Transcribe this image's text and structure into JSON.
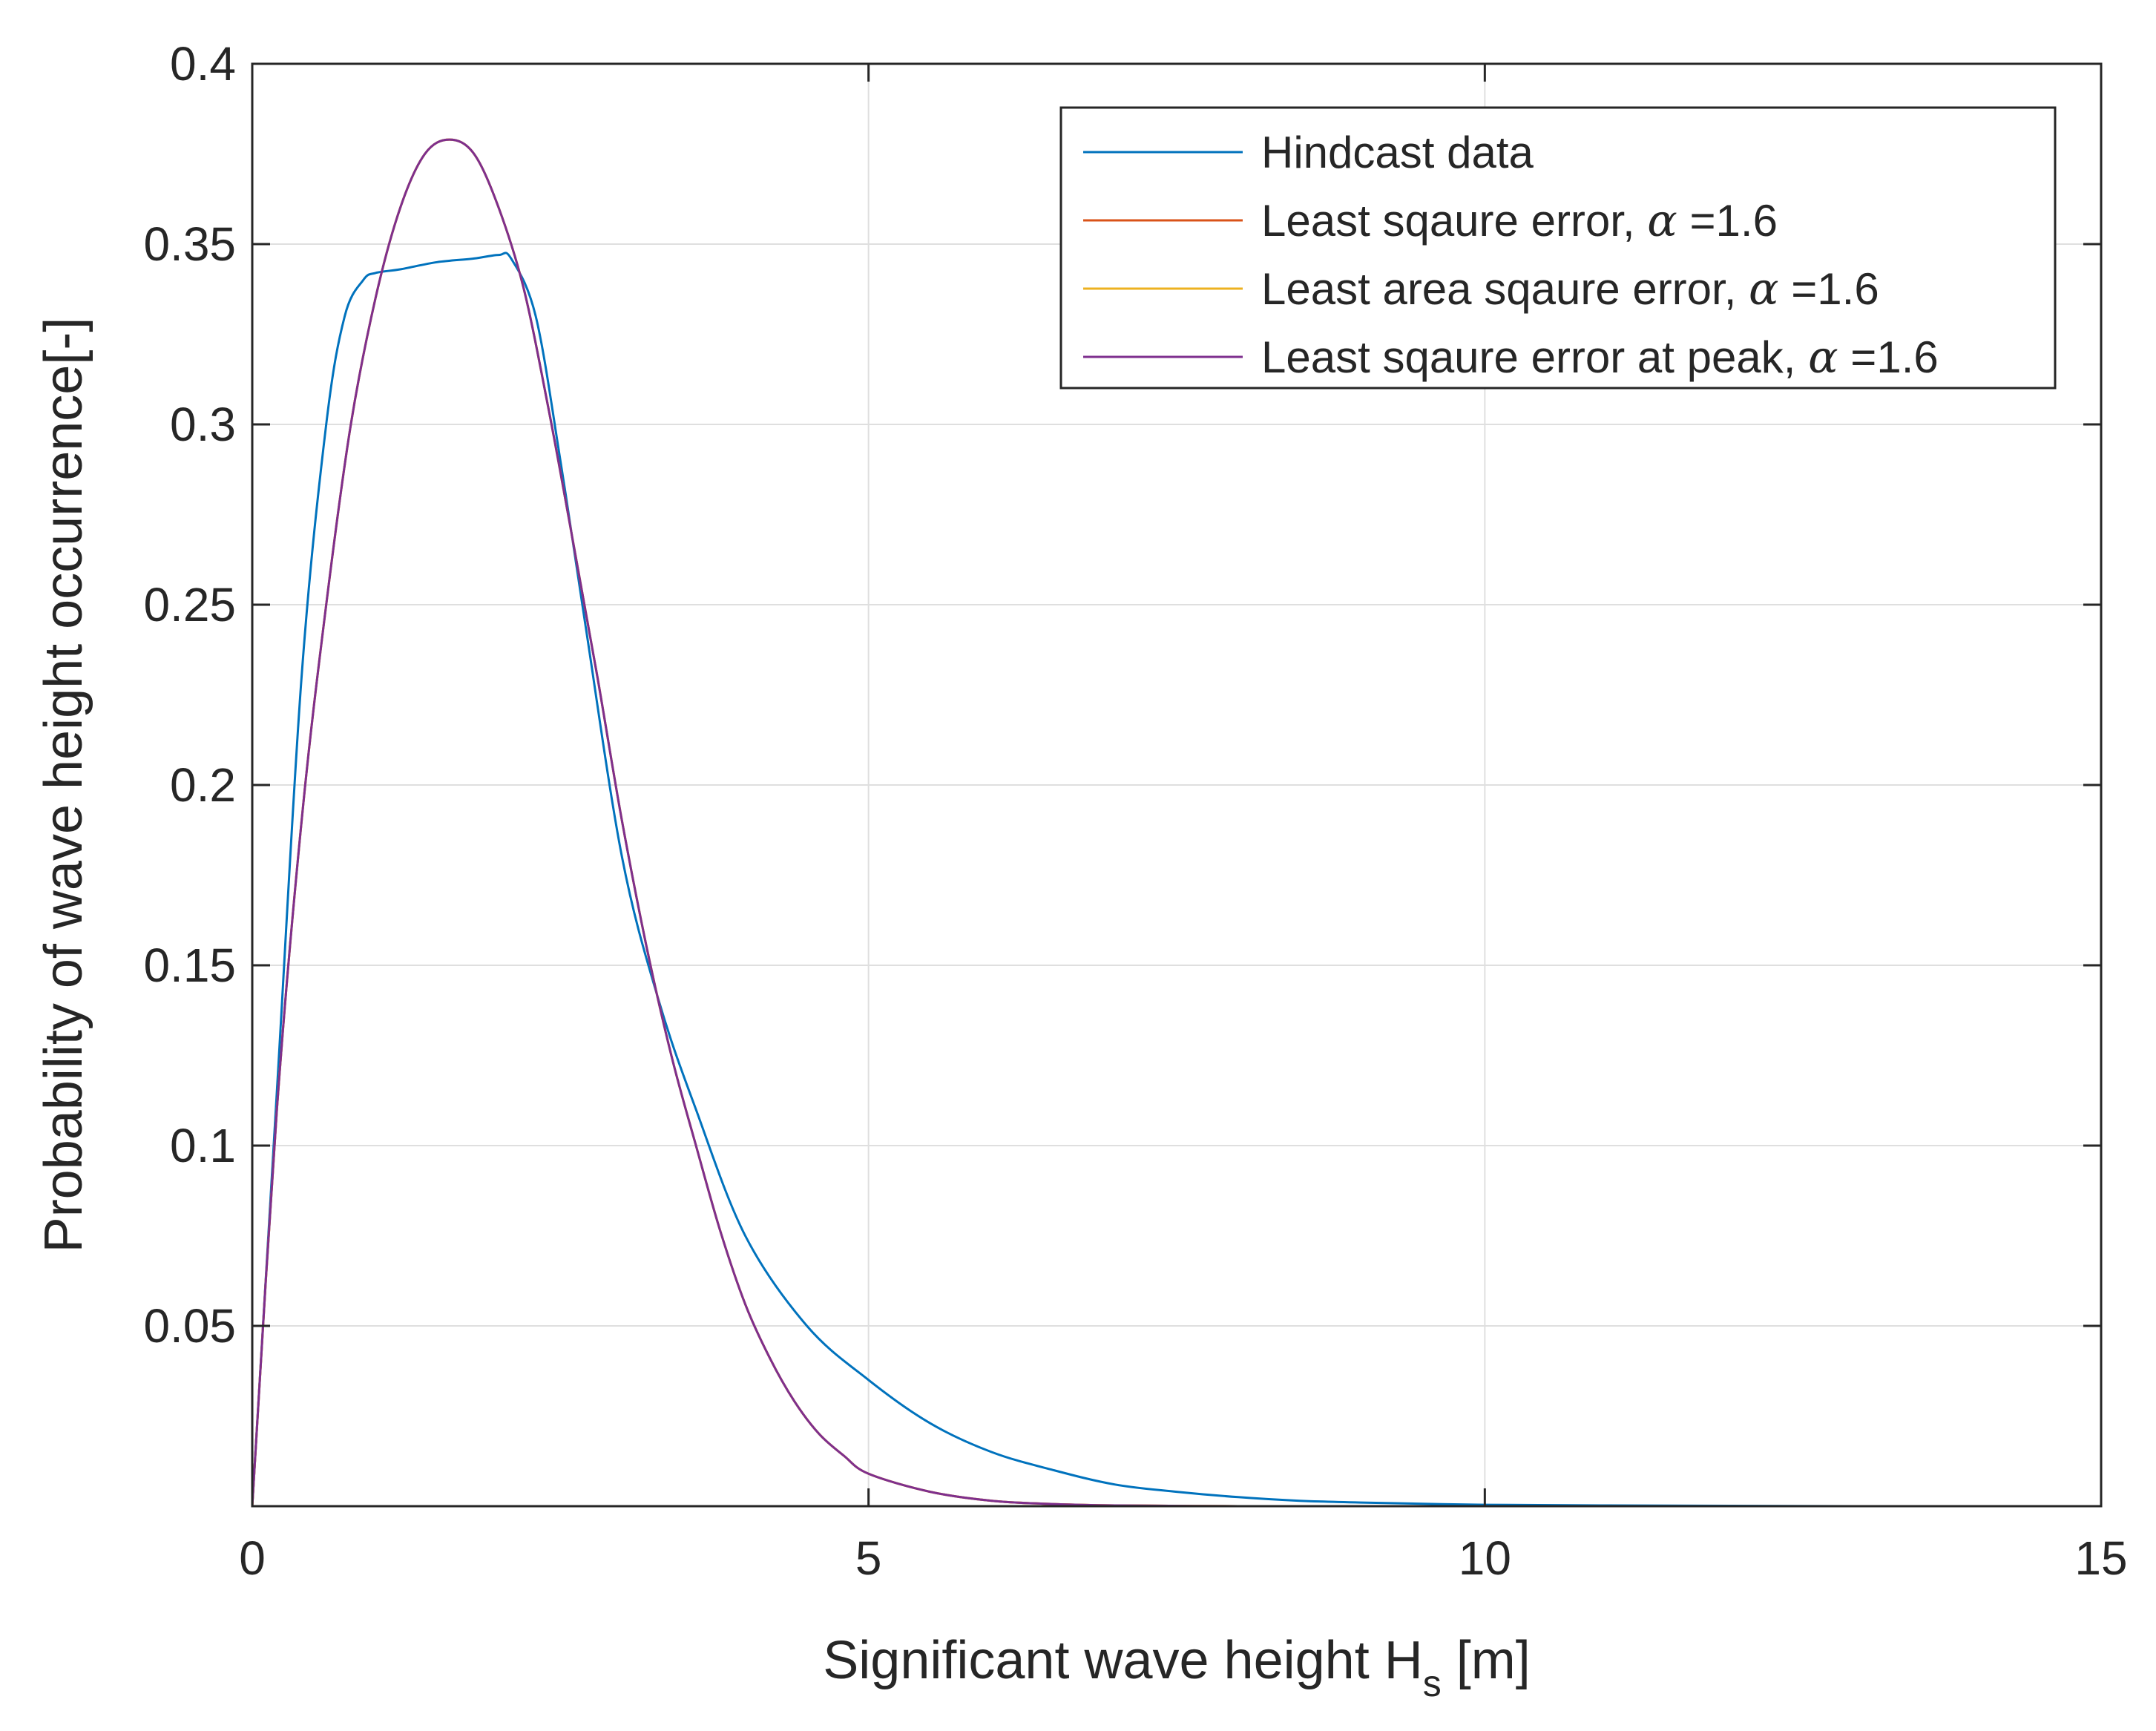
{
  "chart_data": {
    "type": "line",
    "title": "",
    "xlabel_main": "Significant wave height H",
    "xlabel_sub": "s",
    "xlabel_unit": " [m]",
    "ylabel": "Probability of wave height occurrence[-]",
    "xlim": [
      0,
      15
    ],
    "ylim": [
      0,
      0.4
    ],
    "x_ticks": [
      0,
      5,
      10,
      15
    ],
    "x_tick_labels": [
      "0",
      "5",
      "10",
      "15"
    ],
    "y_ticks": [
      0.05,
      0.1,
      0.15,
      0.2,
      0.25,
      0.3,
      0.35,
      0.4
    ],
    "y_tick_labels": [
      "0.05",
      "0.1",
      "0.15",
      "0.2",
      "0.25",
      "0.3",
      "0.35",
      "0.4"
    ],
    "grid": true,
    "legend_position": "top-right",
    "series": [
      {
        "name": "Hindcast data",
        "legend_text": "Hindcast data",
        "legend_symbol": "",
        "legend_suffix": "",
        "color": "#0072BD",
        "x": [
          0,
          0.2,
          0.4,
          0.6,
          0.75,
          0.9,
          1.0,
          1.2,
          1.5,
          1.8,
          2.0,
          2.1,
          2.3,
          2.5,
          2.7,
          3.0,
          3.3,
          3.6,
          4.0,
          4.5,
          5.0,
          5.5,
          6.0,
          6.5,
          7.0,
          7.5,
          8.0,
          8.5,
          9.0,
          10.0,
          11.0,
          12.0,
          13.0,
          14.0,
          15.0
        ],
        "y": [
          0,
          0.115,
          0.23,
          0.3,
          0.33,
          0.34,
          0.342,
          0.343,
          0.345,
          0.346,
          0.347,
          0.346,
          0.33,
          0.29,
          0.245,
          0.18,
          0.14,
          0.11,
          0.075,
          0.05,
          0.035,
          0.023,
          0.015,
          0.01,
          0.006,
          0.004,
          0.0025,
          0.0015,
          0.001,
          0.0004,
          0.0002,
          0.0001,
          0,
          0,
          0
        ]
      },
      {
        "name": "Least sqaure error",
        "legend_text": "Least sqaure error, ",
        "legend_symbol": "α",
        "legend_suffix": " =1.6",
        "color": "#D95319",
        "x": [
          0,
          0.2,
          0.4,
          0.6,
          0.8,
          1.0,
          1.2,
          1.4,
          1.6,
          1.8,
          2.0,
          2.2,
          2.4,
          2.6,
          2.8,
          3.0,
          3.2,
          3.4,
          3.6,
          3.8,
          4.0,
          4.2,
          4.4,
          4.6,
          4.8,
          5.0,
          5.5,
          6.0,
          6.5,
          7.0,
          8.0,
          9.0,
          10.0,
          12.0,
          15.0
        ],
        "y": [
          0,
          0.11,
          0.19,
          0.25,
          0.3,
          0.335,
          0.36,
          0.375,
          0.379,
          0.375,
          0.36,
          0.338,
          0.305,
          0.268,
          0.23,
          0.19,
          0.155,
          0.125,
          0.1,
          0.076,
          0.056,
          0.041,
          0.029,
          0.02,
          0.014,
          0.009,
          0.004,
          0.0015,
          0.0006,
          0.0002,
          0,
          0,
          0,
          0,
          0
        ]
      },
      {
        "name": "Least area sqaure error",
        "legend_text": "Least area sqaure error, ",
        "legend_symbol": "α",
        "legend_suffix": " =1.6",
        "color": "#EDB120",
        "x": [
          0,
          0.2,
          0.4,
          0.6,
          0.8,
          1.0,
          1.2,
          1.4,
          1.6,
          1.8,
          2.0,
          2.2,
          2.4,
          2.6,
          2.8,
          3.0,
          3.2,
          3.4,
          3.6,
          3.8,
          4.0,
          4.2,
          4.4,
          4.6,
          4.8,
          5.0,
          5.5,
          6.0,
          6.5,
          7.0,
          8.0,
          9.0,
          10.0,
          12.0,
          15.0
        ],
        "y": [
          0,
          0.11,
          0.19,
          0.25,
          0.3,
          0.335,
          0.36,
          0.375,
          0.379,
          0.375,
          0.36,
          0.338,
          0.305,
          0.268,
          0.23,
          0.19,
          0.155,
          0.125,
          0.1,
          0.076,
          0.056,
          0.041,
          0.029,
          0.02,
          0.014,
          0.009,
          0.004,
          0.0015,
          0.0006,
          0.0002,
          0,
          0,
          0,
          0,
          0
        ]
      },
      {
        "name": "Least sqaure error at peak",
        "legend_text": "Least sqaure error at peak, ",
        "legend_symbol": "α",
        "legend_suffix": " =1.6",
        "color": "#7E2F8E",
        "x": [
          0,
          0.2,
          0.4,
          0.6,
          0.8,
          1.0,
          1.2,
          1.4,
          1.6,
          1.8,
          2.0,
          2.2,
          2.4,
          2.6,
          2.8,
          3.0,
          3.2,
          3.4,
          3.6,
          3.8,
          4.0,
          4.2,
          4.4,
          4.6,
          4.8,
          5.0,
          5.5,
          6.0,
          6.5,
          7.0,
          8.0,
          9.0,
          10.0,
          12.0,
          15.0
        ],
        "y": [
          0,
          0.11,
          0.19,
          0.25,
          0.3,
          0.335,
          0.36,
          0.375,
          0.379,
          0.375,
          0.36,
          0.338,
          0.305,
          0.268,
          0.23,
          0.19,
          0.155,
          0.125,
          0.1,
          0.076,
          0.056,
          0.041,
          0.029,
          0.02,
          0.014,
          0.009,
          0.004,
          0.0015,
          0.0006,
          0.0002,
          0,
          0,
          0,
          0,
          0
        ]
      }
    ]
  }
}
